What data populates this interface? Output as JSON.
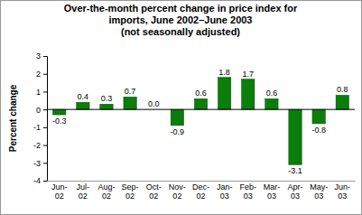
{
  "chart_data": {
    "type": "bar",
    "title": "Over-the-month percent change in price index for imports, June 2002–June 2003",
    "subtitle": "(not seasonally adjusted)",
    "y_label": "Percent change",
    "categories": [
      "Jun-02",
      "Jul-02",
      "Aug-02",
      "Sep-02",
      "Oct-02",
      "Nov-02",
      "Dec-02",
      "Jan-03",
      "Feb-03",
      "Mar-03",
      "Apr-03",
      "May-03",
      "Jun-03"
    ],
    "values": [
      -0.3,
      0.4,
      0.3,
      0.7,
      0.0,
      -0.9,
      0.6,
      1.8,
      1.7,
      0.6,
      -3.1,
      -0.8,
      0.8
    ],
    "value_labels": [
      "-0.3",
      "0.4",
      "0.3",
      "0.7",
      "0.0",
      "-0.9",
      "0.6",
      "1.8",
      "1.7",
      "0.6",
      "-3.1",
      "-0.8",
      "0.8"
    ],
    "color": "#0b7d0b",
    "ylim": [
      -4,
      3
    ],
    "yticks": [
      -4,
      -3,
      -2,
      -1,
      0,
      1,
      2,
      3
    ],
    "grid": false,
    "data_labels": true
  }
}
